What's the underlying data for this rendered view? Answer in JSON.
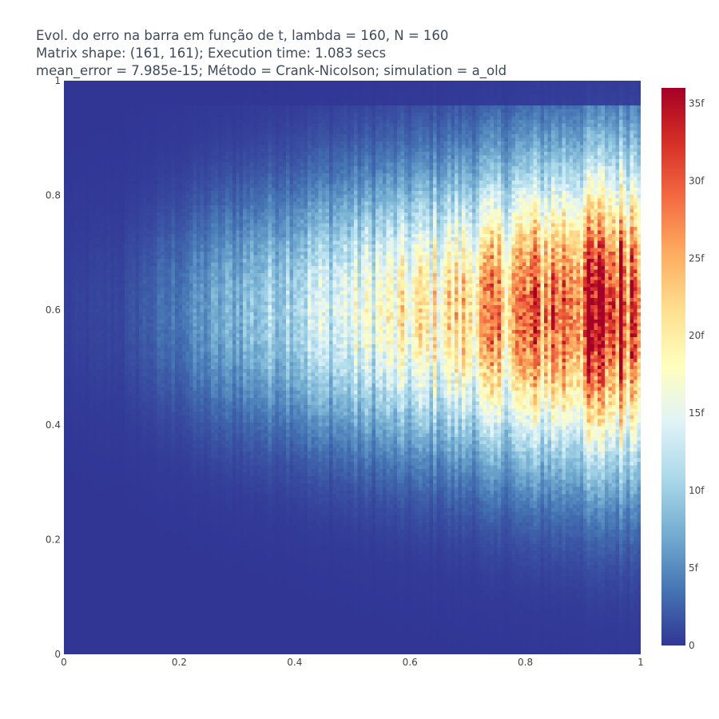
{
  "chart_data": {
    "type": "heatmap",
    "title_lines": [
      "Evol. do erro na barra em função de t, lambda = 160, N = 160",
      "Matrix shape: (161, 161); Execution time: 1.083 secs",
      "mean_error = 7.985e-15; Método = Crank-Nicolson; simulation = a_old"
    ],
    "matrix_shape": [
      161,
      161
    ],
    "xlim": [
      0,
      1
    ],
    "ylim": [
      0,
      1
    ],
    "x_ticks": [
      "0",
      "0.2",
      "0.4",
      "0.6",
      "0.8",
      "1"
    ],
    "y_ticks": [
      "0",
      "0.2",
      "0.4",
      "0.6",
      "0.8",
      "1"
    ],
    "z_range": [
      0,
      3.6e-14
    ],
    "colorbar": {
      "tick_labels": [
        "0",
        "5f",
        "10f",
        "15f",
        "20f",
        "25f",
        "30f",
        "35f"
      ],
      "tick_values": [
        0,
        5e-15,
        1e-14,
        1.5e-14,
        2e-14,
        2.5e-14,
        3e-14,
        3.5e-14
      ],
      "colorscale": [
        "#313695",
        "#4575b4",
        "#74add1",
        "#abd9e9",
        "#e0f3f8",
        "#ffffbf",
        "#fee090",
        "#fdae61",
        "#f46d43",
        "#d73027",
        "#a50026"
      ]
    },
    "approx_profile": {
      "description_x": [
        0,
        0.1,
        0.2,
        0.3,
        0.4,
        0.5,
        0.6,
        0.7,
        0.8,
        0.9,
        1.0
      ],
      "peak_value_by_x": [
        5e-16,
        1e-15,
        4e-15,
        8e-15,
        1.2e-14,
        1.5e-14,
        1.8e-14,
        2.2e-14,
        2.7e-14,
        3.1e-14,
        3.4e-14
      ],
      "peak_y": 0.6
    }
  }
}
